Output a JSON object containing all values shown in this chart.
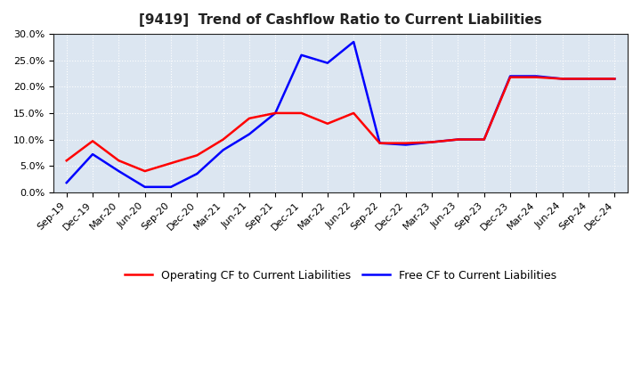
{
  "title": "[9419]  Trend of Cashflow Ratio to Current Liabilities",
  "x_labels": [
    "Sep-19",
    "Dec-19",
    "Mar-20",
    "Jun-20",
    "Sep-20",
    "Dec-20",
    "Mar-21",
    "Jun-21",
    "Sep-21",
    "Dec-21",
    "Mar-22",
    "Jun-22",
    "Sep-22",
    "Dec-22",
    "Mar-23",
    "Jun-23",
    "Sep-23",
    "Dec-23",
    "Mar-24",
    "Jun-24",
    "Sep-24",
    "Dec-24"
  ],
  "operating_cf": [
    0.06,
    0.097,
    0.06,
    0.04,
    0.055,
    0.07,
    0.1,
    0.14,
    0.15,
    0.15,
    0.13,
    0.15,
    0.093,
    0.093,
    0.095,
    0.1,
    0.1,
    0.218,
    0.218,
    0.215,
    0.215,
    0.215
  ],
  "free_cf": [
    0.018,
    0.072,
    0.04,
    0.01,
    0.01,
    0.035,
    0.08,
    0.11,
    0.15,
    0.26,
    0.245,
    0.285,
    0.093,
    0.09,
    0.095,
    0.1,
    0.1,
    0.22,
    0.22,
    0.215,
    0.215,
    0.215
  ],
  "ylim": [
    0.0,
    0.3
  ],
  "yticks": [
    0.0,
    0.05,
    0.1,
    0.15,
    0.2,
    0.25,
    0.3
  ],
  "operating_color": "#ff0000",
  "free_color": "#0000ff",
  "plot_bg_color": "#dce6f1",
  "figure_bg_color": "#ffffff",
  "grid_color": "#ffffff",
  "title_fontsize": 11,
  "tick_fontsize": 8,
  "legend_fontsize": 9,
  "legend_operating": "Operating CF to Current Liabilities",
  "legend_free": "Free CF to Current Liabilities",
  "linewidth": 1.8
}
